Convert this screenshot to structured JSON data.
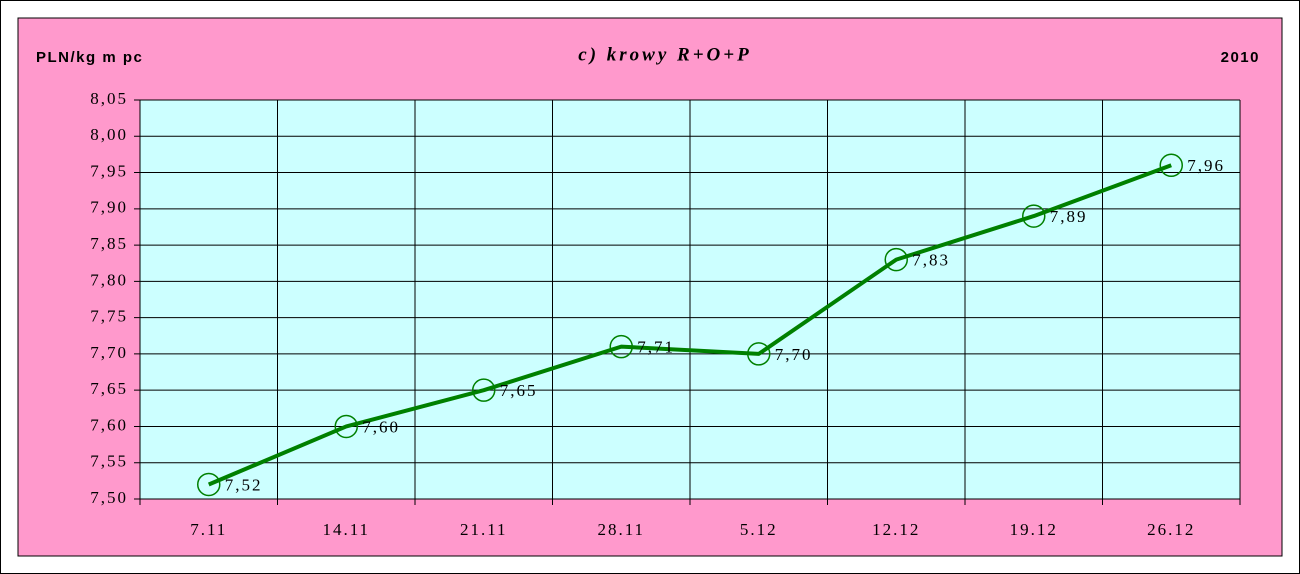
{
  "chart_data": {
    "type": "line",
    "title": "c) krowy R+O+P",
    "ylabel": "PLN/kg m pc",
    "annotations": [
      "2010"
    ],
    "categories": [
      "7.11",
      "14.11",
      "21.11",
      "28.11",
      "5.12",
      "12.12",
      "19.12",
      "26.12"
    ],
    "series": [
      {
        "name": null,
        "color": "#008000",
        "values": [
          7.52,
          7.6,
          7.65,
          7.71,
          7.7,
          7.83,
          7.89,
          7.96
        ],
        "value_labels": [
          "7,52",
          "7,60",
          "7,65",
          "7,71",
          "7,70",
          "7,83",
          "7,89",
          "7,96"
        ]
      }
    ],
    "ylim": [
      7.5,
      8.05
    ],
    "yticks": [
      {
        "value": 7.5,
        "label": "7,50"
      },
      {
        "value": 7.55,
        "label": "7,55"
      },
      {
        "value": 7.6,
        "label": "7,60"
      },
      {
        "value": 7.65,
        "label": "7,65"
      },
      {
        "value": 7.7,
        "label": "7,70"
      },
      {
        "value": 7.75,
        "label": "7,75"
      },
      {
        "value": 7.8,
        "label": "7,80"
      },
      {
        "value": 7.85,
        "label": "7,85"
      },
      {
        "value": 7.9,
        "label": "7,90"
      },
      {
        "value": 7.95,
        "label": "7,95"
      },
      {
        "value": 8.0,
        "label": "8,00"
      },
      {
        "value": 8.05,
        "label": "8,05"
      }
    ],
    "grid": true
  }
}
